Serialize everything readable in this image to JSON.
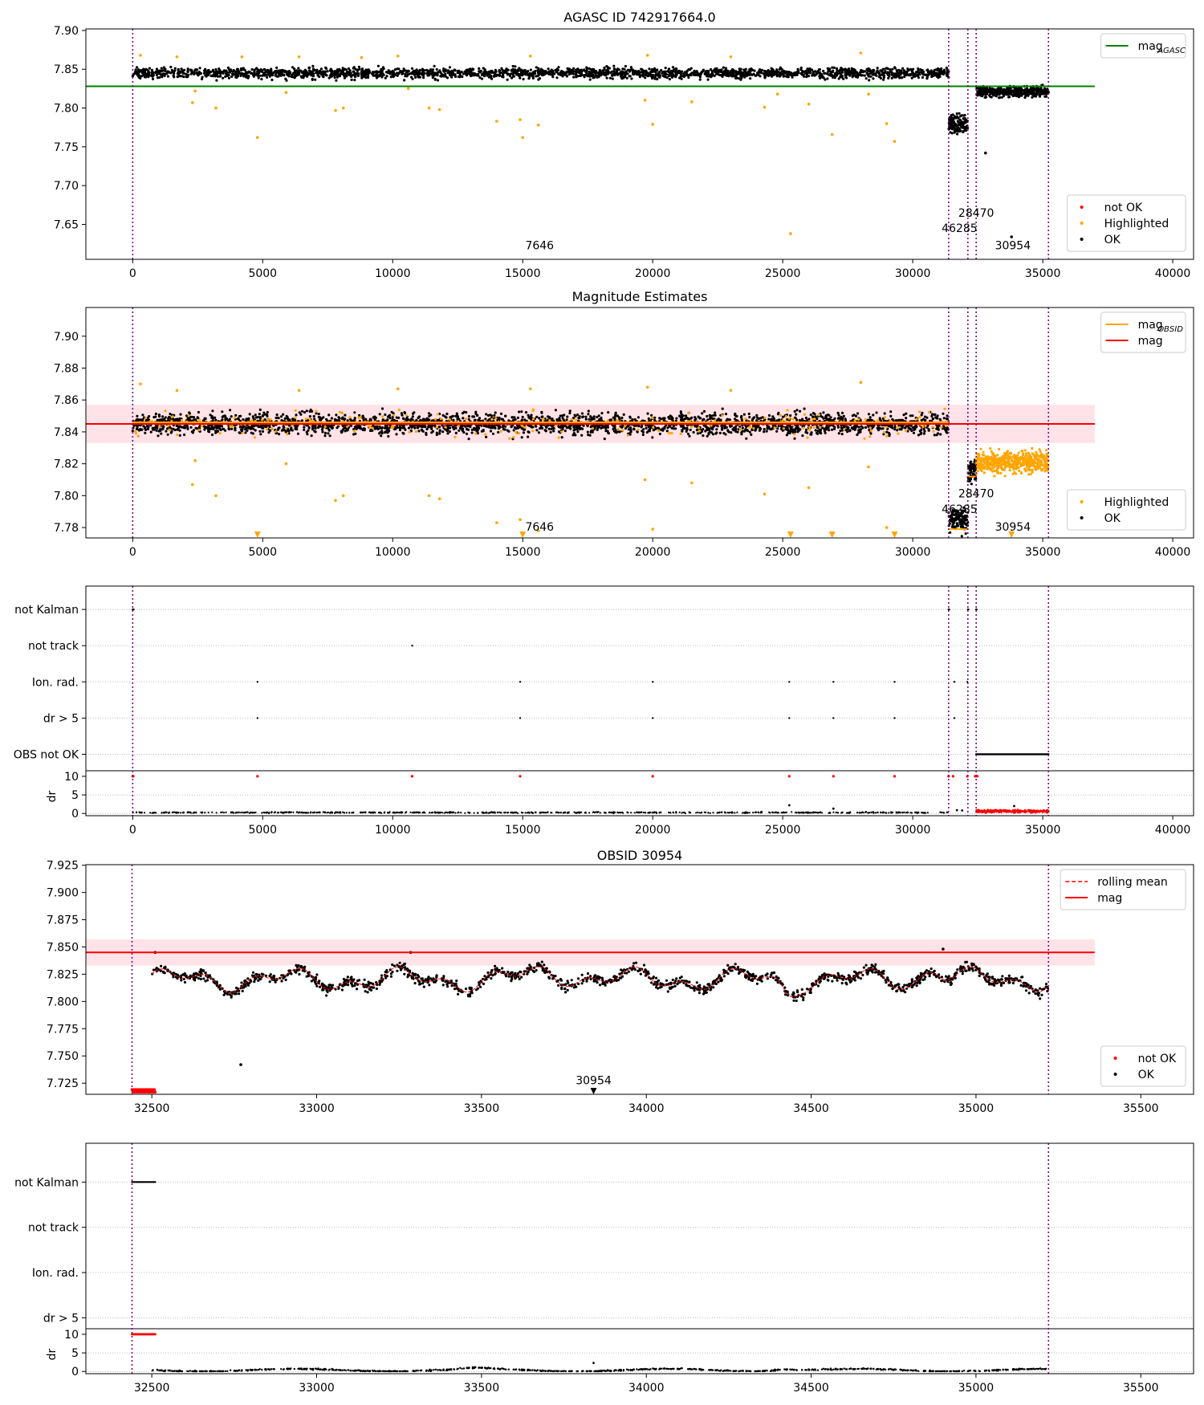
{
  "chart_data": [
    {
      "id": "agasc",
      "type": "scatter",
      "title": "AGASC ID 742917664.0",
      "xlim": [
        -1800,
        40800
      ],
      "ylim": [
        7.605,
        7.902
      ],
      "xticks": [
        0,
        5000,
        10000,
        15000,
        20000,
        25000,
        30000,
        35000,
        40000
      ],
      "yticks": [
        7.65,
        7.7,
        7.75,
        7.8,
        7.85,
        7.9
      ],
      "ytick_labels": [
        "7.65",
        "7.70",
        "7.75",
        "7.80",
        "7.85",
        "7.90"
      ],
      "obs_boundaries": [
        0,
        31380,
        32120,
        32440,
        35220
      ],
      "hlines": [
        {
          "y": 7.828,
          "x0": -1800,
          "x1": 37000,
          "color": "#008000"
        }
      ],
      "clusters": [
        {
          "x0": 0,
          "x1": 31380,
          "center": 7.845,
          "half": 0.012,
          "n": 2400,
          "color": "#000000",
          "jitter": 0.004
        },
        {
          "x0": 31380,
          "x1": 32120,
          "center": 7.78,
          "half": 0.02,
          "n": 140,
          "color": "#000000",
          "jitter": 0.004
        },
        {
          "x0": 32440,
          "x1": 35220,
          "center": 7.821,
          "half": 0.012,
          "n": 420,
          "color": "#000000",
          "jitter": 0.003
        }
      ],
      "points_highlighted": [
        [
          2300,
          7.807
        ],
        [
          2400,
          7.822
        ],
        [
          3200,
          7.8
        ],
        [
          4800,
          7.762
        ],
        [
          5900,
          7.82
        ],
        [
          7800,
          7.797
        ],
        [
          8100,
          7.8
        ],
        [
          10600,
          7.825
        ],
        [
          11400,
          7.8
        ],
        [
          11800,
          7.798
        ],
        [
          14000,
          7.783
        ],
        [
          14900,
          7.785
        ],
        [
          15000,
          7.762
        ],
        [
          15600,
          7.778
        ],
        [
          19700,
          7.81
        ],
        [
          20000,
          7.779
        ],
        [
          21500,
          7.808
        ],
        [
          24300,
          7.801
        ],
        [
          24800,
          7.818
        ],
        [
          25300,
          7.638
        ],
        [
          26000,
          7.805
        ],
        [
          26900,
          7.766
        ],
        [
          28300,
          7.818
        ],
        [
          29000,
          7.78
        ],
        [
          29300,
          7.757
        ],
        [
          300,
          7.868
        ],
        [
          1700,
          7.866
        ],
        [
          6400,
          7.866
        ],
        [
          10200,
          7.867
        ],
        [
          15300,
          7.867
        ],
        [
          19800,
          7.868
        ],
        [
          23000,
          7.866
        ],
        [
          28000,
          7.871
        ],
        [
          8800,
          7.865
        ],
        [
          4200,
          7.866
        ]
      ],
      "points_ok": [
        [
          33800,
          7.634
        ],
        [
          32800,
          7.742
        ]
      ],
      "annotations": [
        {
          "text": "28470",
          "x": 32440,
          "y": 7.66
        },
        {
          "text": "46285",
          "x": 31800,
          "y": 7.64
        },
        {
          "text": "7646",
          "x": 15650,
          "y": 7.618
        },
        {
          "text": "30954",
          "x": 33850,
          "y": 7.618
        }
      ],
      "legends": [
        {
          "position": "upper right",
          "entries": [
            {
              "kind": "line",
              "color": "#008000",
              "label": "mag",
              "sub": "AGASC"
            }
          ]
        },
        {
          "position": "lower right",
          "entries": [
            {
              "kind": "dot",
              "color": "#ff0000",
              "label": "not OK"
            },
            {
              "kind": "dot",
              "color": "#ffa500",
              "label": "Highlighted"
            },
            {
              "kind": "dot",
              "color": "#000000",
              "label": "OK"
            }
          ]
        }
      ]
    },
    {
      "id": "estimates",
      "type": "scatter",
      "title": "Magnitude Estimates",
      "xlim": [
        -1800,
        40800
      ],
      "ylim": [
        7.7735,
        7.918
      ],
      "xticks": [
        0,
        5000,
        10000,
        15000,
        20000,
        25000,
        30000,
        35000,
        40000
      ],
      "yticks": [
        7.78,
        7.8,
        7.82,
        7.84,
        7.86,
        7.88,
        7.9
      ],
      "ytick_labels": [
        "7.78",
        "7.80",
        "7.82",
        "7.84",
        "7.86",
        "7.88",
        "7.90"
      ],
      "obs_boundaries": [
        0,
        31380,
        32120,
        32440,
        35220
      ],
      "band": {
        "y0": 7.833,
        "y1": 7.857,
        "x0": -1800,
        "x1": 37000,
        "color": "#ffc0cb"
      },
      "hlines": [
        {
          "y": 7.845,
          "x0": -1800,
          "x1": 37000,
          "color": "#ff0000"
        },
        {
          "y": 7.846,
          "x0": 0,
          "x1": 31380,
          "color": "#ffa500"
        },
        {
          "y": 7.779,
          "x0": 31380,
          "x1": 32120,
          "color": "#ffa500"
        },
        {
          "y": 7.812,
          "x0": 32120,
          "x1": 32440,
          "color": "#ffa500"
        }
      ],
      "clusters": [
        {
          "x0": 0,
          "x1": 31380,
          "center": 7.845,
          "half": 0.012,
          "n": 2600,
          "color": "#000000",
          "jitter": 0.004
        },
        {
          "x0": 0,
          "x1": 31380,
          "center": 7.845,
          "half": 0.015,
          "n": 220,
          "color": "#ffa500",
          "jitter": 0.004
        },
        {
          "x0": 31380,
          "x1": 32120,
          "center": 7.785,
          "half": 0.012,
          "n": 130,
          "color": "#000000",
          "jitter": 0.003
        },
        {
          "x0": 32120,
          "x1": 32440,
          "center": 7.815,
          "half": 0.012,
          "n": 60,
          "color": "#000000",
          "jitter": 0.003
        },
        {
          "x0": 32440,
          "x1": 35220,
          "center": 7.821,
          "half": 0.012,
          "n": 520,
          "color": "#ffa500",
          "jitter": 0.003
        }
      ],
      "points_highlighted": [
        [
          2300,
          7.807
        ],
        [
          2400,
          7.822
        ],
        [
          3200,
          7.8
        ],
        [
          5900,
          7.82
        ],
        [
          7800,
          7.797
        ],
        [
          8100,
          7.8
        ],
        [
          11400,
          7.8
        ],
        [
          11800,
          7.798
        ],
        [
          14000,
          7.783
        ],
        [
          14900,
          7.785
        ],
        [
          15600,
          7.778
        ],
        [
          19700,
          7.81
        ],
        [
          20000,
          7.779
        ],
        [
          21500,
          7.808
        ],
        [
          24300,
          7.801
        ],
        [
          26000,
          7.805
        ],
        [
          28300,
          7.818
        ],
        [
          29000,
          7.78
        ],
        [
          300,
          7.87
        ],
        [
          1700,
          7.866
        ],
        [
          6400,
          7.866
        ],
        [
          10200,
          7.867
        ],
        [
          15300,
          7.867
        ],
        [
          19800,
          7.868
        ],
        [
          23000,
          7.866
        ],
        [
          28000,
          7.871
        ]
      ],
      "clipped_markers": [
        4800,
        15000,
        25300,
        26900,
        29300,
        33800
      ],
      "annotations": [
        {
          "text": "7646",
          "x": 15650,
          "y": 7.778
        },
        {
          "text": "30954",
          "x": 33850,
          "y": 7.778
        },
        {
          "text": "28470",
          "x": 32440,
          "y": 7.799
        },
        {
          "text": "46285",
          "x": 31800,
          "y": 7.789
        }
      ],
      "legends": [
        {
          "position": "upper right",
          "entries": [
            {
              "kind": "line",
              "color": "#ffa500",
              "label": "mag",
              "sub": "OBSID"
            },
            {
              "kind": "line",
              "color": "#ff0000",
              "label": "mag"
            }
          ]
        },
        {
          "position": "lower right",
          "entries": [
            {
              "kind": "dot",
              "color": "#ffa500",
              "label": "Highlighted"
            },
            {
              "kind": "dot",
              "color": "#000000",
              "label": "OK"
            }
          ]
        }
      ]
    },
    {
      "id": "flags",
      "type": "scatter",
      "xlim": [
        -1800,
        40800
      ],
      "xticks": [
        0,
        5000,
        10000,
        15000,
        20000,
        25000,
        30000,
        35000,
        40000
      ],
      "obs_boundaries": [
        0,
        31380,
        32120,
        32440,
        35220
      ],
      "rows": [
        "not Kalman",
        "not track",
        "Ion. rad.",
        "dr > 5",
        "OBS not OK"
      ],
      "flag_points": [
        {
          "row": "not Kalman",
          "xs": [
            0,
            20,
            40,
            31380,
            31400,
            32120,
            32140,
            32440,
            32460
          ]
        },
        {
          "row": "not track",
          "xs": [
            10750
          ]
        },
        {
          "row": "Ion. rad.",
          "xs": [
            4800,
            14900,
            20000,
            25250,
            26950,
            29300,
            31600,
            32100
          ]
        },
        {
          "row": "dr > 5",
          "xs": [
            4800,
            14900,
            20000,
            25250,
            26950,
            29300,
            31600
          ]
        },
        {
          "row": "OBS not OK",
          "range": [
            32440,
            35220
          ],
          "n": 90
        }
      ],
      "dr": {
        "ylim": [
          -0.6,
          11.5
        ],
        "yticks": [
          0,
          5,
          10
        ],
        "ylabel": "dr",
        "base": [
          0,
          31380,
          0.25
        ],
        "base_red": [
          32440,
          35220,
          0.6
        ],
        "red_tens": [
          0,
          20,
          4800,
          10750,
          14900,
          20000,
          25250,
          26950,
          29300,
          31380,
          31550,
          32100,
          32400,
          32480
        ],
        "extra": [
          [
            25250,
            2.2
          ],
          [
            26950,
            1.3
          ],
          [
            33900,
            2.0
          ],
          [
            31700,
            0.9
          ],
          [
            31900,
            0.8
          ]
        ]
      }
    },
    {
      "id": "obs30954",
      "type": "line",
      "title": "OBSID 30954",
      "xlim": [
        32300,
        35660
      ],
      "ylim": [
        7.7148,
        7.9255
      ],
      "xticks": [
        32500,
        33000,
        33500,
        34000,
        34500,
        35000,
        35500
      ],
      "yticks": [
        7.725,
        7.75,
        7.775,
        7.8,
        7.825,
        7.85,
        7.875,
        7.9,
        7.925
      ],
      "ytick_labels": [
        "7.725",
        "7.750",
        "7.775",
        "7.800",
        "7.825",
        "7.850",
        "7.875",
        "7.900",
        "7.925"
      ],
      "obs_boundaries": [
        32440,
        35220
      ],
      "band": {
        "y0": 7.833,
        "y1": 7.857,
        "x0": 32300,
        "x1": 35360,
        "color": "#ffc0cb"
      },
      "hlines": [
        {
          "y": 7.845,
          "x0": 32300,
          "x1": 35360,
          "color": "#ff0000"
        }
      ],
      "series_range": [
        32500,
        35220
      ],
      "series_base": 7.82,
      "red_floor": {
        "x0": 32440,
        "x1": 32510,
        "y": 7.718,
        "n": 30
      },
      "points_ok": [
        [
          32510,
          7.845
        ],
        [
          32770,
          7.742
        ],
        [
          33285,
          7.845
        ],
        [
          34900,
          7.848
        ]
      ],
      "clipped_markers": [
        33840
      ],
      "annotations": [
        {
          "text": "30954",
          "x": 33840,
          "y": 7.721
        }
      ],
      "legends": [
        {
          "position": "upper right",
          "entries": [
            {
              "kind": "dashed",
              "color": "#ff0000",
              "label": "rolling mean"
            },
            {
              "kind": "line",
              "color": "#ff0000",
              "label": "mag"
            }
          ]
        },
        {
          "position": "lower right",
          "entries": [
            {
              "kind": "dot",
              "color": "#ff0000",
              "label": "not OK"
            },
            {
              "kind": "dot",
              "color": "#000000",
              "label": "OK"
            }
          ]
        }
      ]
    },
    {
      "id": "flags30954",
      "type": "scatter",
      "xlim": [
        32300,
        35660
      ],
      "xticks": [
        32500,
        33000,
        33500,
        34000,
        34500,
        35000,
        35500
      ],
      "obs_boundaries": [
        32440,
        35220
      ],
      "rows": [
        "not Kalman",
        "not track",
        "Ion. rad.",
        "dr > 5"
      ],
      "flag_points": [
        {
          "row": "not Kalman",
          "range": [
            32440,
            32510
          ],
          "n": 20
        }
      ],
      "dr": {
        "ylim": [
          -0.6,
          11.5
        ],
        "yticks": [
          0,
          5,
          10
        ],
        "ylabel": "dr",
        "red_range": [
          32440,
          32510,
          10,
          20
        ],
        "series_range": [
          32500,
          35220
        ],
        "extra": [
          [
            33840,
            2.3
          ]
        ]
      }
    }
  ]
}
